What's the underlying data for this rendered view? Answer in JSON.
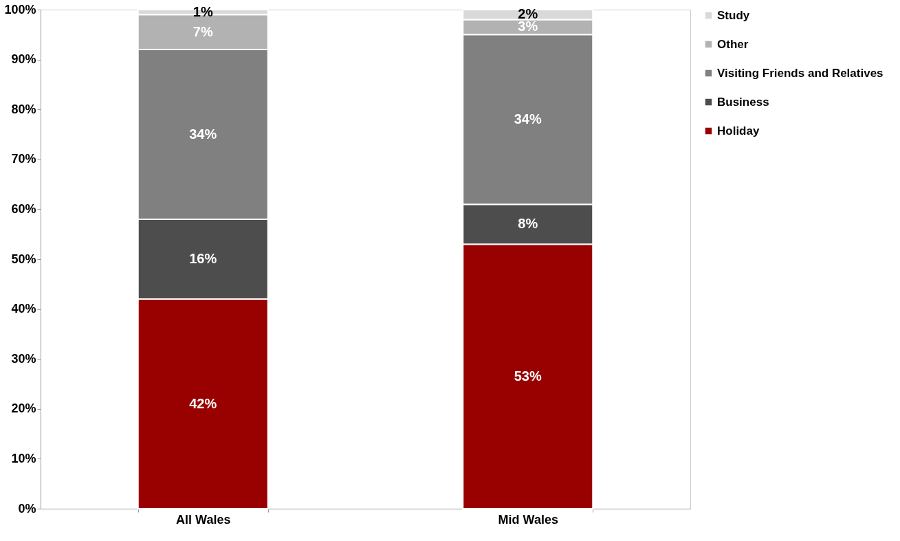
{
  "chart_data": {
    "type": "bar",
    "stacked": true,
    "categories": [
      "All Wales",
      "Mid Wales"
    ],
    "series": [
      {
        "name": "Holiday",
        "color": "#990000",
        "values": [
          42,
          53
        ],
        "value_labels": [
          "42%",
          "53%"
        ]
      },
      {
        "name": "Business",
        "color": "#4d4d4d",
        "values": [
          16,
          8
        ],
        "value_labels": [
          "16%",
          "8%"
        ]
      },
      {
        "name": "Visiting Friends and Relatives",
        "color": "#808080",
        "values": [
          34,
          34
        ],
        "value_labels": [
          "34%",
          "34%"
        ]
      },
      {
        "name": "Other",
        "color": "#b2b2b2",
        "values": [
          7,
          3
        ],
        "value_labels": [
          "7%",
          "3%"
        ]
      },
      {
        "name": "Study",
        "color": "#d9d9d9",
        "values": [
          1,
          2
        ],
        "value_labels": [
          "1%",
          "2%"
        ]
      }
    ],
    "ylim": [
      0,
      100
    ],
    "yticks": [
      {
        "value": 0,
        "label": "0%"
      },
      {
        "value": 10,
        "label": "10%"
      },
      {
        "value": 20,
        "label": "20%"
      },
      {
        "value": 30,
        "label": "30%"
      },
      {
        "value": 40,
        "label": "40%"
      },
      {
        "value": 50,
        "label": "50%"
      },
      {
        "value": 60,
        "label": "60%"
      },
      {
        "value": 70,
        "label": "70%"
      },
      {
        "value": 80,
        "label": "80%"
      },
      {
        "value": 90,
        "label": "90%"
      },
      {
        "value": 100,
        "label": "100%"
      }
    ],
    "grid": false,
    "legend": "right"
  }
}
